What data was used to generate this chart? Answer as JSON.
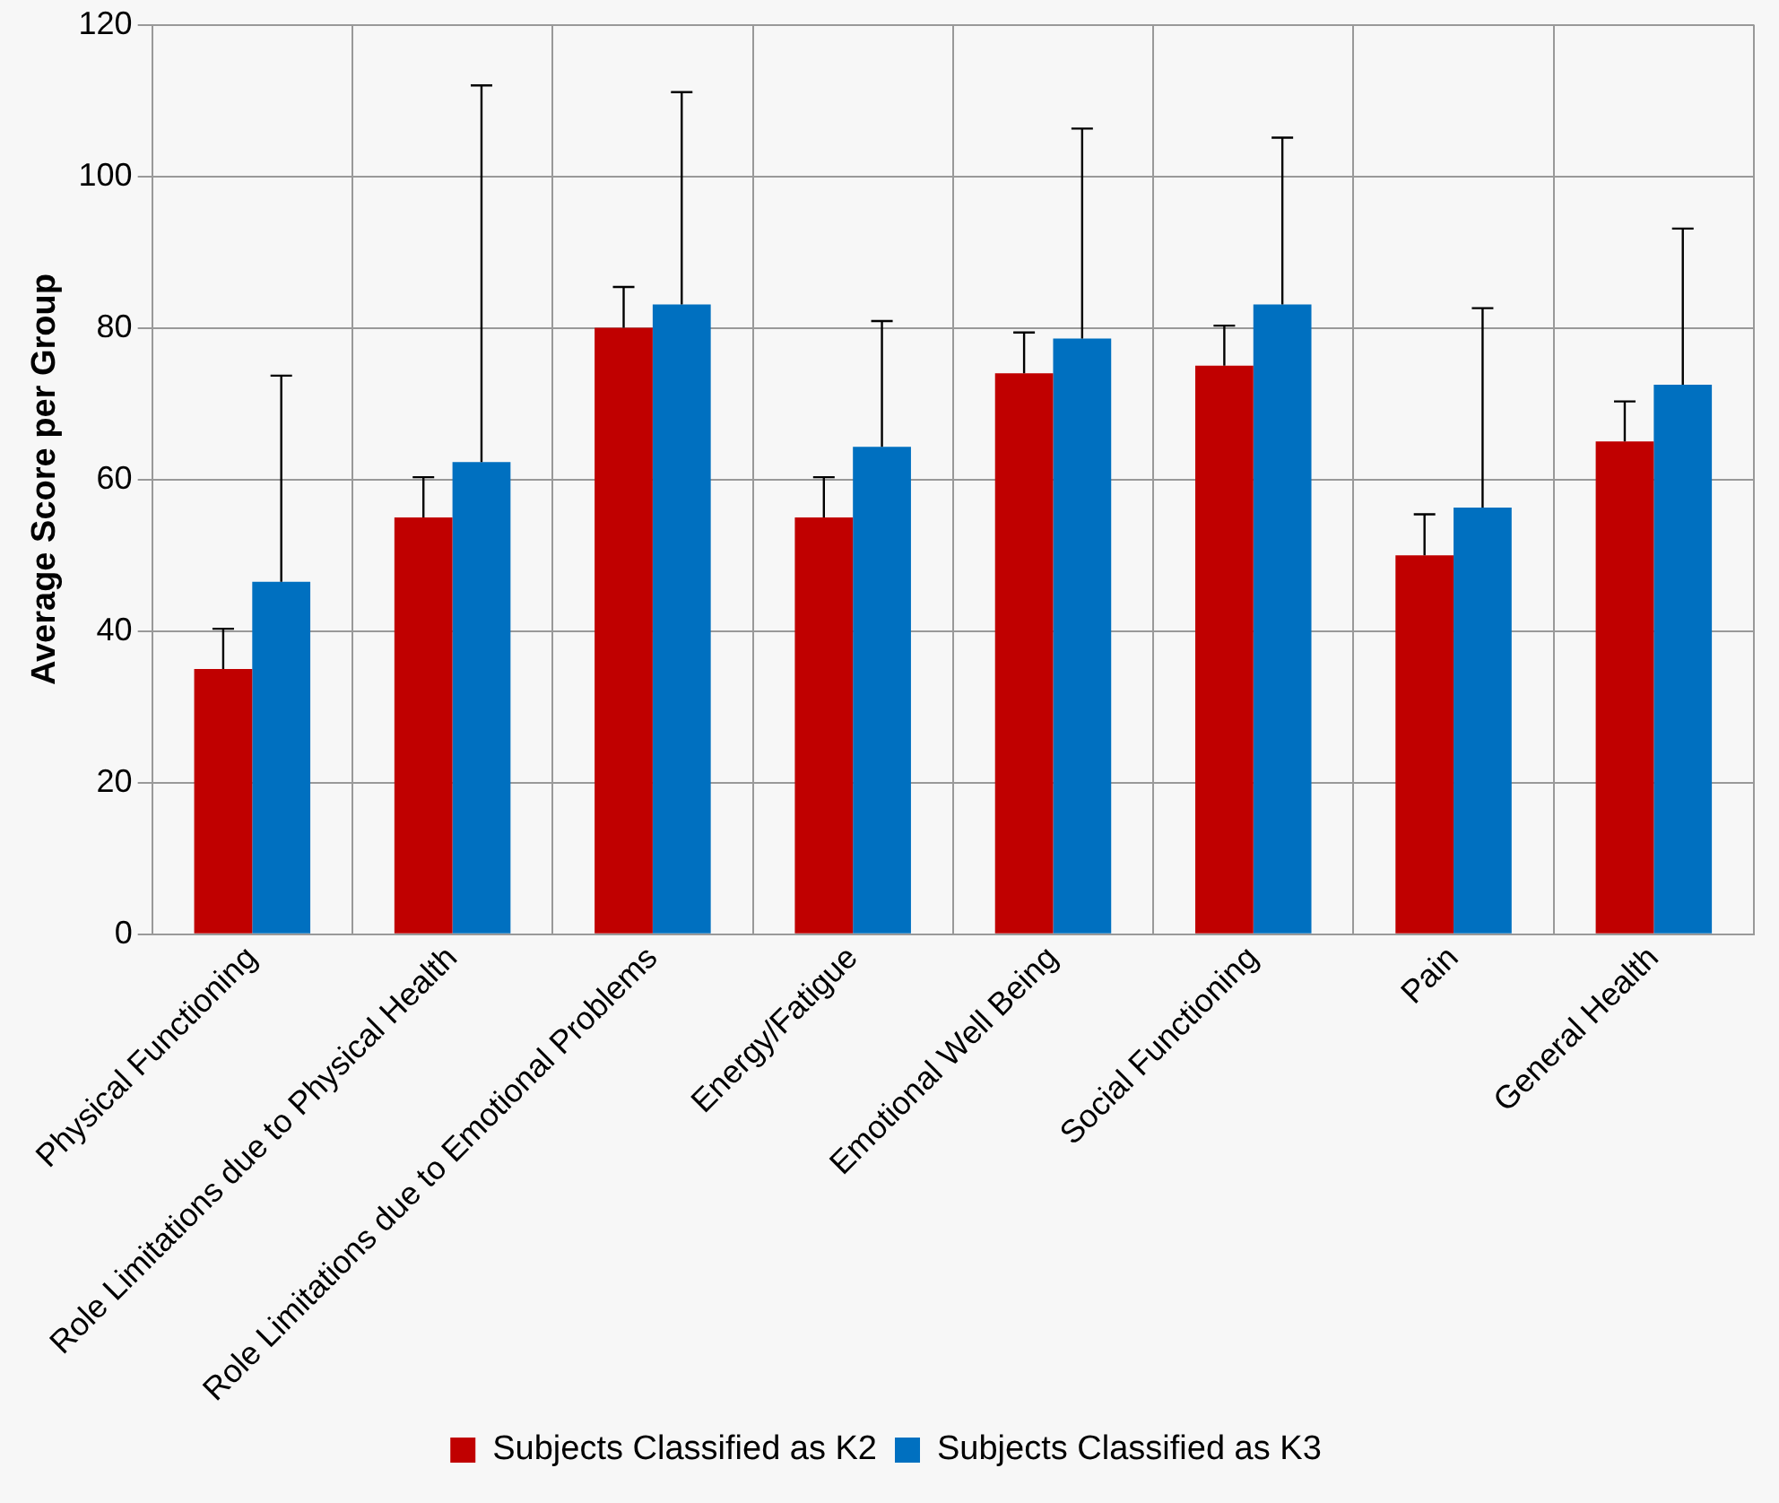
{
  "chart_data": {
    "type": "bar",
    "ylabel": "Average Score per Group",
    "categories": [
      "Physical Functioning",
      "Role Limitations due to Physical Health",
      "Role Limitations due to Emotional Problems",
      "Energy/Fatigue",
      "Emotional Well Being",
      "Social Functioning",
      "Pain",
      "General Health"
    ],
    "series": [
      {
        "name": "Subjects Classified as K2",
        "color": "#c00000",
        "values": [
          35,
          55,
          80,
          55,
          74,
          75,
          50,
          65
        ],
        "errors": [
          [
            35,
            40.3
          ],
          [
            55,
            60.3
          ],
          [
            80,
            85.4
          ],
          [
            55,
            60.3
          ],
          [
            74,
            79.4
          ],
          [
            75,
            80.3
          ],
          [
            50,
            55.4
          ],
          [
            65,
            70.3
          ]
        ]
      },
      {
        "name": "Subjects Classified as K3",
        "color": "#0070c0",
        "values": [
          46.5,
          62.3,
          83.1,
          64.3,
          78.6,
          83.1,
          56.3,
          72.5
        ],
        "errors": [
          [
            46.5,
            73.7
          ],
          [
            62.3,
            112
          ],
          [
            83.1,
            111.1
          ],
          [
            64.3,
            80.9
          ],
          [
            78.6,
            106.3
          ],
          [
            83.1,
            105.1
          ],
          [
            56.3,
            82.6
          ],
          [
            72.5,
            93.1
          ]
        ]
      }
    ],
    "ylim": [
      0,
      120
    ],
    "yticks": [
      0,
      20,
      40,
      60,
      80,
      100,
      120
    ],
    "grid": true,
    "legend": "bottom"
  }
}
